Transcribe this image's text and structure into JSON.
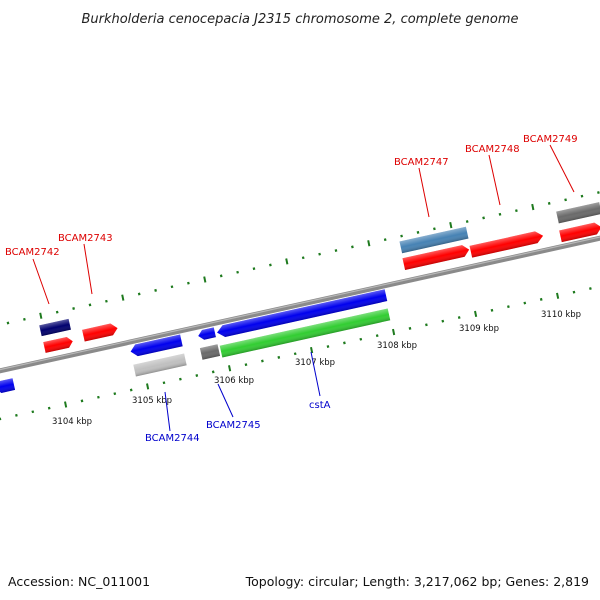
{
  "title": "Burkholderia cenocepacia J2315 chromosome 2, complete genome",
  "footer": {
    "accession": "Accession: NC_011001",
    "summary": "Topology: circular; Length: 3,217,062 bp; Genes: 2,819"
  },
  "colors": {
    "backbone": "#808080",
    "tick_dot": "#1e7a1e",
    "forward_label": "#dd0000",
    "reverse_label": "#0000cc",
    "red_gene": "#ff0000",
    "blue_gene": "#0000ee",
    "navy_gene": "#00006e",
    "steel_gene": "#4682b4",
    "gray_gene": "#6a6a6a",
    "silver_gene": "#c0c0c0",
    "green_gene": "#32cd32"
  },
  "scale": {
    "unit": "kbp",
    "major_ticks": [
      {
        "label": "3104 kbp"
      },
      {
        "label": "3105 kbp"
      },
      {
        "label": "3106 kbp"
      },
      {
        "label": "3107 kbp"
      },
      {
        "label": "3108 kbp"
      },
      {
        "label": "3109 kbp"
      },
      {
        "label": "3110 kbp"
      }
    ]
  },
  "gene_labels": {
    "forward": [
      "BCAM2742",
      "BCAM2743",
      "BCAM2747",
      "BCAM2748",
      "BCAM2749"
    ],
    "reverse": [
      "BCAM2744",
      "BCAM2745",
      "cstA"
    ]
  }
}
